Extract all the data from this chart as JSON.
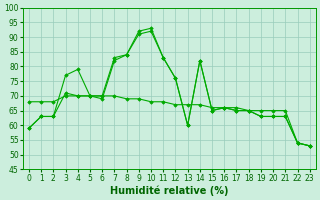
{
  "xlabel": "Humidité relative (%)",
  "xlim": [
    -0.5,
    23.5
  ],
  "ylim": [
    45,
    100
  ],
  "yticks": [
    45,
    50,
    55,
    60,
    65,
    70,
    75,
    80,
    85,
    90,
    95,
    100
  ],
  "xticks": [
    0,
    1,
    2,
    3,
    4,
    5,
    6,
    7,
    8,
    9,
    10,
    11,
    12,
    13,
    14,
    15,
    16,
    17,
    18,
    19,
    20,
    21,
    22,
    23
  ],
  "bg_color": "#cceedd",
  "grid_color": "#99ccbb",
  "line_color": "#00aa00",
  "lines": [
    {
      "x": [
        0,
        1,
        2,
        3,
        4,
        5,
        6,
        7,
        8,
        9,
        10,
        11,
        12,
        13,
        14,
        15,
        16,
        17,
        18,
        19,
        20,
        21,
        22,
        23
      ],
      "y": [
        59,
        63,
        63,
        77,
        79,
        70,
        69,
        82,
        84,
        92,
        93,
        83,
        76,
        60,
        82,
        65,
        66,
        65,
        65,
        63,
        63,
        63,
        54,
        53
      ]
    },
    {
      "x": [
        0,
        1,
        2,
        3,
        4,
        5,
        6,
        7,
        8,
        9,
        10,
        11,
        12,
        13,
        14,
        15,
        16,
        17,
        18,
        19,
        20,
        21,
        22,
        23
      ],
      "y": [
        59,
        63,
        63,
        71,
        70,
        70,
        70,
        83,
        84,
        91,
        92,
        83,
        76,
        60,
        82,
        65,
        66,
        65,
        65,
        63,
        63,
        63,
        54,
        53
      ]
    },
    {
      "x": [
        0,
        1,
        2,
        3,
        4,
        5,
        6,
        7,
        8,
        9,
        10,
        11,
        12,
        13,
        14,
        15,
        16,
        17,
        18,
        19,
        20,
        21,
        22,
        23
      ],
      "y": [
        68,
        68,
        68,
        70,
        70,
        70,
        70,
        70,
        69,
        69,
        68,
        68,
        67,
        67,
        67,
        66,
        66,
        66,
        65,
        65,
        65,
        65,
        54,
        53
      ]
    }
  ]
}
